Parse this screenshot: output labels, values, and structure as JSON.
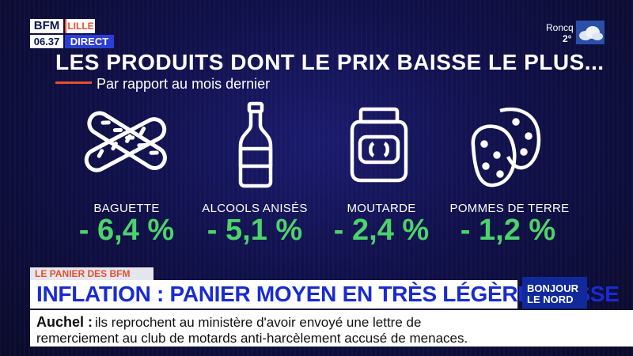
{
  "logo": {
    "brand": "BFM",
    "city": "LILLE",
    "time": "06.37",
    "live": "DIRECT"
  },
  "weather": {
    "city": "Roncq",
    "temperature": "2°",
    "icon": "cloud-icon"
  },
  "infographic": {
    "title": "LES PRODUITS DONT LE PRIX BAISSE LE PLUS...",
    "subtitle": "Par rapport au mois dernier",
    "products": [
      {
        "name": "BAGUETTE",
        "change": "- 6,4 %",
        "icon": "baguette-icon"
      },
      {
        "name": "ALCOOLS ANISÉS",
        "change": "- 5,1 %",
        "icon": "bottle-icon"
      },
      {
        "name": "MOUTARDE",
        "change": "- 2,4 %",
        "icon": "mustard-jar-icon"
      },
      {
        "name": "POMMES DE TERRE",
        "change": "- 1,2 %",
        "icon": "potato-icon"
      }
    ],
    "value_color": "#4cd36a"
  },
  "lower_third": {
    "tag": "LE PANIER DES BFM",
    "headline": "INFLATION : PANIER MOYEN EN TRÈS LÉGÈRE BAISSE",
    "show_line1": "BONJOUR",
    "show_line2": "LE NORD"
  },
  "ticker": {
    "place": "Auchel :",
    "line1": "ils reprochent au ministère d'avoir envoyé une lettre de",
    "line2": "remerciement au club de motards anti-harcèlement accusé de menaces."
  }
}
